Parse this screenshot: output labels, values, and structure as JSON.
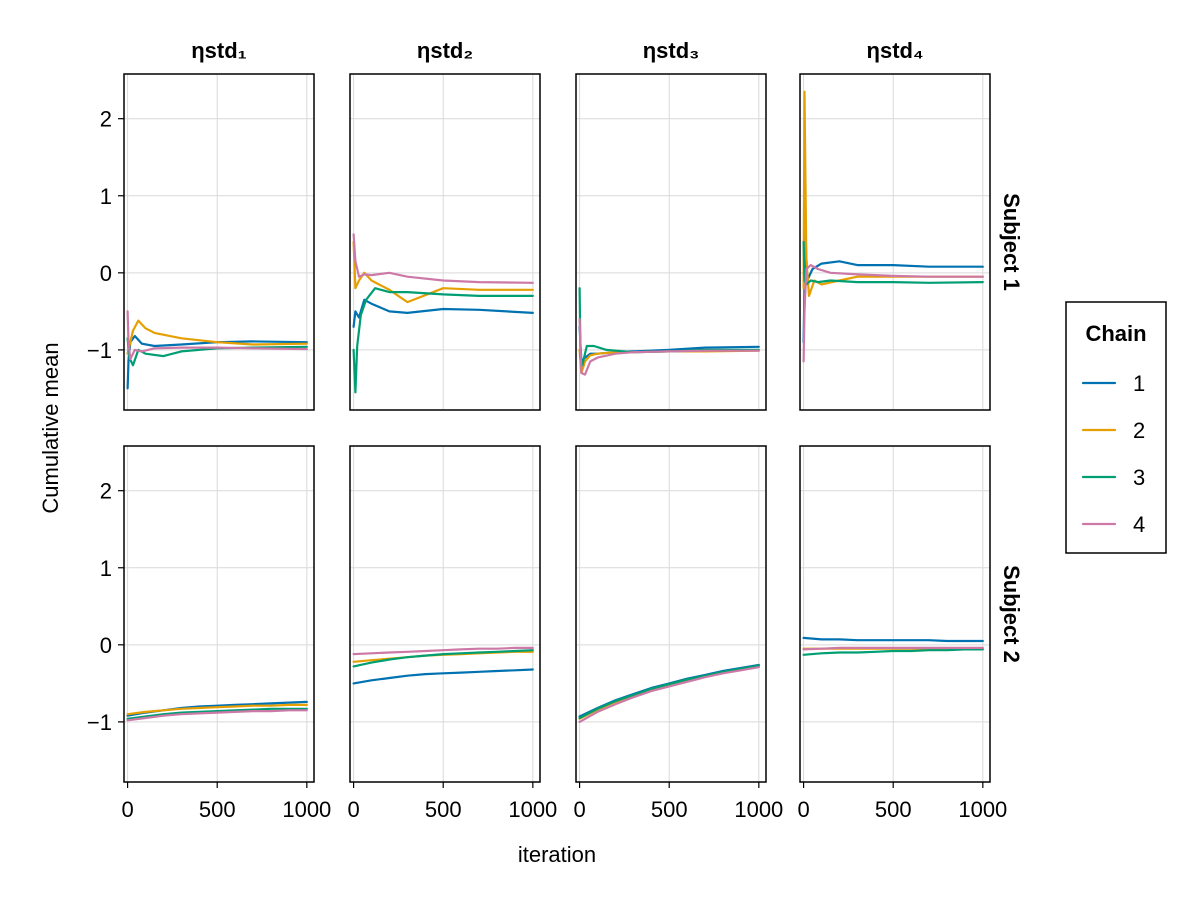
{
  "chart_data": {
    "type": "line",
    "xlabel": "iteration",
    "ylabel": "Cumulative mean",
    "xlim": [
      -20,
      1040
    ],
    "ylim": [
      -1.78,
      2.58
    ],
    "x_ticks": [
      0,
      500,
      1000
    ],
    "x_tick_labels": [
      "0",
      "500",
      "1000"
    ],
    "y_ticks": [
      -1,
      0,
      1,
      2
    ],
    "y_tick_labels": [
      "−1",
      "0",
      "1",
      "2"
    ],
    "grid": true,
    "columns": [
      "ηstd₁",
      "ηstd₂",
      "ηstd₃",
      "ηstd₄"
    ],
    "rows": [
      "Subject 1",
      "Subject 2"
    ],
    "legend": {
      "title": "Chain",
      "placement": "right",
      "entries": [
        {
          "label": "1",
          "color": "#0072b2"
        },
        {
          "label": "2",
          "color": "#e69f00"
        },
        {
          "label": "3",
          "color": "#009e73"
        },
        {
          "label": "4",
          "color": "#cc79a7"
        }
      ]
    },
    "panels": [
      {
        "row": 0,
        "col": 0,
        "series": [
          {
            "name": "1",
            "x": [
              0,
              5,
              15,
              40,
              80,
              150,
              300,
              500,
              700,
              1000
            ],
            "y": [
              -1.5,
              -1.15,
              -0.9,
              -0.82,
              -0.92,
              -0.95,
              -0.93,
              -0.9,
              -0.89,
              -0.9
            ]
          },
          {
            "name": "2",
            "x": [
              0,
              10,
              30,
              60,
              100,
              150,
              300,
              500,
              700,
              1000
            ],
            "y": [
              -1.05,
              -0.95,
              -0.75,
              -0.62,
              -0.72,
              -0.78,
              -0.85,
              -0.9,
              -0.93,
              -0.92
            ]
          },
          {
            "name": "3",
            "x": [
              0,
              10,
              30,
              60,
              100,
              200,
              300,
              500,
              700,
              1000
            ],
            "y": [
              -0.85,
              -1.1,
              -1.2,
              -1.0,
              -1.05,
              -1.08,
              -1.02,
              -0.98,
              -0.97,
              -0.96
            ]
          },
          {
            "name": "4",
            "x": [
              0,
              5,
              15,
              40,
              80,
              150,
              300,
              500,
              700,
              1000
            ],
            "y": [
              -0.5,
              -0.9,
              -1.12,
              -1.0,
              -1.02,
              -0.98,
              -0.97,
              -0.97,
              -0.98,
              -0.99
            ]
          }
        ]
      },
      {
        "row": 0,
        "col": 1,
        "series": [
          {
            "name": "1",
            "x": [
              0,
              10,
              30,
              60,
              100,
              200,
              300,
              500,
              700,
              1000
            ],
            "y": [
              -0.7,
              -0.5,
              -0.58,
              -0.35,
              -0.4,
              -0.5,
              -0.52,
              -0.47,
              -0.48,
              -0.52
            ]
          },
          {
            "name": "2",
            "x": [
              0,
              10,
              30,
              60,
              100,
              200,
              300,
              500,
              700,
              1000
            ],
            "y": [
              0.4,
              -0.2,
              -0.1,
              0.0,
              -0.1,
              -0.22,
              -0.38,
              -0.2,
              -0.22,
              -0.22
            ]
          },
          {
            "name": "3",
            "x": [
              0,
              10,
              20,
              40,
              70,
              120,
              200,
              300,
              500,
              700,
              1000
            ],
            "y": [
              -1.0,
              -1.55,
              -0.95,
              -0.55,
              -0.35,
              -0.2,
              -0.25,
              -0.25,
              -0.28,
              -0.3,
              -0.3
            ]
          },
          {
            "name": "4",
            "x": [
              0,
              10,
              30,
              60,
              100,
              200,
              300,
              500,
              700,
              1000
            ],
            "y": [
              0.5,
              0.15,
              -0.05,
              -0.02,
              -0.03,
              0.0,
              -0.05,
              -0.1,
              -0.12,
              -0.13
            ]
          }
        ]
      },
      {
        "row": 0,
        "col": 2,
        "series": [
          {
            "name": "1",
            "x": [
              0,
              10,
              30,
              60,
              100,
              200,
              300,
              500,
              700,
              1000
            ],
            "y": [
              -0.7,
              -1.15,
              -1.1,
              -1.05,
              -1.05,
              -1.03,
              -1.02,
              -1.0,
              -0.97,
              -0.96
            ]
          },
          {
            "name": "2",
            "x": [
              0,
              10,
              30,
              60,
              100,
              200,
              300,
              500,
              700,
              1000
            ],
            "y": [
              -1.0,
              -1.3,
              -1.15,
              -1.07,
              -1.05,
              -1.03,
              -1.03,
              -1.02,
              -1.02,
              -1.01
            ]
          },
          {
            "name": "3",
            "x": [
              0,
              5,
              15,
              40,
              80,
              150,
              300,
              500,
              700,
              1000
            ],
            "y": [
              -0.2,
              -1.1,
              -1.2,
              -0.95,
              -0.95,
              -1.0,
              -1.03,
              -1.02,
              -1.0,
              -1.0
            ]
          },
          {
            "name": "4",
            "x": [
              0,
              10,
              30,
              60,
              100,
              200,
              300,
              500,
              700,
              1000
            ],
            "y": [
              -0.6,
              -1.3,
              -1.32,
              -1.15,
              -1.1,
              -1.05,
              -1.03,
              -1.02,
              -1.01,
              -1.01
            ]
          }
        ]
      },
      {
        "row": 0,
        "col": 3,
        "series": [
          {
            "name": "1",
            "x": [
              0,
              10,
              20,
              50,
              100,
              200,
              300,
              500,
              700,
              1000
            ],
            "y": [
              -0.9,
              0.55,
              -0.1,
              0.05,
              0.12,
              0.15,
              0.1,
              0.1,
              0.08,
              0.08
            ]
          },
          {
            "name": "2",
            "x": [
              0,
              5,
              15,
              30,
              60,
              100,
              200,
              300,
              500,
              700,
              1000
            ],
            "y": [
              -0.2,
              2.35,
              0.2,
              -0.3,
              -0.1,
              -0.15,
              -0.1,
              -0.05,
              -0.05,
              -0.05,
              -0.05
            ]
          },
          {
            "name": "3",
            "x": [
              0,
              5,
              15,
              40,
              80,
              150,
              300,
              500,
              700,
              1000
            ],
            "y": [
              0.4,
              -0.1,
              -0.15,
              -0.1,
              -0.12,
              -0.1,
              -0.12,
              -0.12,
              -0.13,
              -0.12
            ]
          },
          {
            "name": "4",
            "x": [
              0,
              5,
              15,
              40,
              80,
              150,
              300,
              500,
              700,
              1000
            ],
            "y": [
              -1.15,
              -0.5,
              0.05,
              0.1,
              0.05,
              0.0,
              -0.02,
              -0.04,
              -0.05,
              -0.05
            ]
          }
        ]
      },
      {
        "row": 1,
        "col": 0,
        "series": [
          {
            "name": "1",
            "x": [
              0,
              100,
              200,
              300,
              400,
              500,
              600,
              700,
              800,
              900,
              1000
            ],
            "y": [
              -0.92,
              -0.88,
              -0.85,
              -0.82,
              -0.8,
              -0.79,
              -0.78,
              -0.77,
              -0.76,
              -0.75,
              -0.74
            ]
          },
          {
            "name": "2",
            "x": [
              0,
              100,
              200,
              300,
              400,
              500,
              600,
              700,
              800,
              900,
              1000
            ],
            "y": [
              -0.9,
              -0.87,
              -0.85,
              -0.83,
              -0.82,
              -0.81,
              -0.8,
              -0.79,
              -0.79,
              -0.78,
              -0.78
            ]
          },
          {
            "name": "3",
            "x": [
              0,
              100,
              200,
              300,
              400,
              500,
              600,
              700,
              800,
              900,
              1000
            ],
            "y": [
              -0.96,
              -0.93,
              -0.9,
              -0.88,
              -0.87,
              -0.86,
              -0.85,
              -0.84,
              -0.83,
              -0.83,
              -0.83
            ]
          },
          {
            "name": "4",
            "x": [
              0,
              100,
              200,
              300,
              400,
              500,
              600,
              700,
              800,
              900,
              1000
            ],
            "y": [
              -0.98,
              -0.95,
              -0.92,
              -0.9,
              -0.89,
              -0.88,
              -0.87,
              -0.86,
              -0.86,
              -0.85,
              -0.85
            ]
          }
        ]
      },
      {
        "row": 1,
        "col": 1,
        "series": [
          {
            "name": "1",
            "x": [
              0,
              100,
              200,
              300,
              400,
              500,
              600,
              700,
              800,
              900,
              1000
            ],
            "y": [
              -0.5,
              -0.46,
              -0.43,
              -0.4,
              -0.38,
              -0.37,
              -0.36,
              -0.35,
              -0.34,
              -0.33,
              -0.32
            ]
          },
          {
            "name": "2",
            "x": [
              0,
              100,
              200,
              300,
              400,
              500,
              600,
              700,
              800,
              900,
              1000
            ],
            "y": [
              -0.22,
              -0.2,
              -0.18,
              -0.16,
              -0.14,
              -0.13,
              -0.12,
              -0.11,
              -0.1,
              -0.09,
              -0.09
            ]
          },
          {
            "name": "3",
            "x": [
              0,
              100,
              200,
              300,
              400,
              500,
              600,
              700,
              800,
              900,
              1000
            ],
            "y": [
              -0.28,
              -0.23,
              -0.19,
              -0.16,
              -0.14,
              -0.12,
              -0.11,
              -0.1,
              -0.09,
              -0.08,
              -0.07
            ]
          },
          {
            "name": "4",
            "x": [
              0,
              100,
              200,
              300,
              400,
              500,
              600,
              700,
              800,
              900,
              1000
            ],
            "y": [
              -0.12,
              -0.11,
              -0.1,
              -0.09,
              -0.08,
              -0.07,
              -0.06,
              -0.05,
              -0.05,
              -0.04,
              -0.04
            ]
          }
        ]
      },
      {
        "row": 1,
        "col": 2,
        "series": [
          {
            "name": "1",
            "x": [
              0,
              100,
              200,
              300,
              400,
              500,
              600,
              700,
              800,
              900,
              1000
            ],
            "y": [
              -0.93,
              -0.82,
              -0.72,
              -0.64,
              -0.56,
              -0.5,
              -0.44,
              -0.39,
              -0.34,
              -0.3,
              -0.26
            ]
          },
          {
            "name": "2",
            "x": [
              0,
              100,
              200,
              300,
              400,
              500,
              600,
              700,
              800,
              900,
              1000
            ],
            "y": [
              -0.96,
              -0.84,
              -0.74,
              -0.66,
              -0.58,
              -0.52,
              -0.46,
              -0.41,
              -0.36,
              -0.32,
              -0.28
            ]
          },
          {
            "name": "3",
            "x": [
              0,
              100,
              200,
              300,
              400,
              500,
              600,
              700,
              800,
              900,
              1000
            ],
            "y": [
              -0.95,
              -0.83,
              -0.73,
              -0.65,
              -0.57,
              -0.51,
              -0.45,
              -0.4,
              -0.35,
              -0.31,
              -0.27
            ]
          },
          {
            "name": "4",
            "x": [
              0,
              100,
              200,
              300,
              400,
              500,
              600,
              700,
              800,
              900,
              1000
            ],
            "y": [
              -1.0,
              -0.87,
              -0.77,
              -0.68,
              -0.6,
              -0.54,
              -0.48,
              -0.42,
              -0.37,
              -0.33,
              -0.29
            ]
          }
        ]
      },
      {
        "row": 1,
        "col": 3,
        "series": [
          {
            "name": "1",
            "x": [
              0,
              100,
              200,
              300,
              400,
              500,
              600,
              700,
              800,
              900,
              1000
            ],
            "y": [
              0.09,
              0.07,
              0.07,
              0.06,
              0.06,
              0.06,
              0.06,
              0.06,
              0.05,
              0.05,
              0.05
            ]
          },
          {
            "name": "2",
            "x": [
              0,
              100,
              200,
              300,
              400,
              500,
              600,
              700,
              800,
              900,
              1000
            ],
            "y": [
              -0.05,
              -0.05,
              -0.05,
              -0.05,
              -0.05,
              -0.05,
              -0.05,
              -0.05,
              -0.05,
              -0.05,
              -0.05
            ]
          },
          {
            "name": "3",
            "x": [
              0,
              100,
              200,
              300,
              400,
              500,
              600,
              700,
              800,
              900,
              1000
            ],
            "y": [
              -0.13,
              -0.11,
              -0.1,
              -0.1,
              -0.09,
              -0.08,
              -0.08,
              -0.07,
              -0.07,
              -0.06,
              -0.06
            ]
          },
          {
            "name": "4",
            "x": [
              0,
              100,
              200,
              300,
              400,
              500,
              600,
              700,
              800,
              900,
              1000
            ],
            "y": [
              -0.06,
              -0.05,
              -0.04,
              -0.04,
              -0.04,
              -0.04,
              -0.04,
              -0.04,
              -0.04,
              -0.04,
              -0.04
            ]
          }
        ]
      }
    ]
  }
}
